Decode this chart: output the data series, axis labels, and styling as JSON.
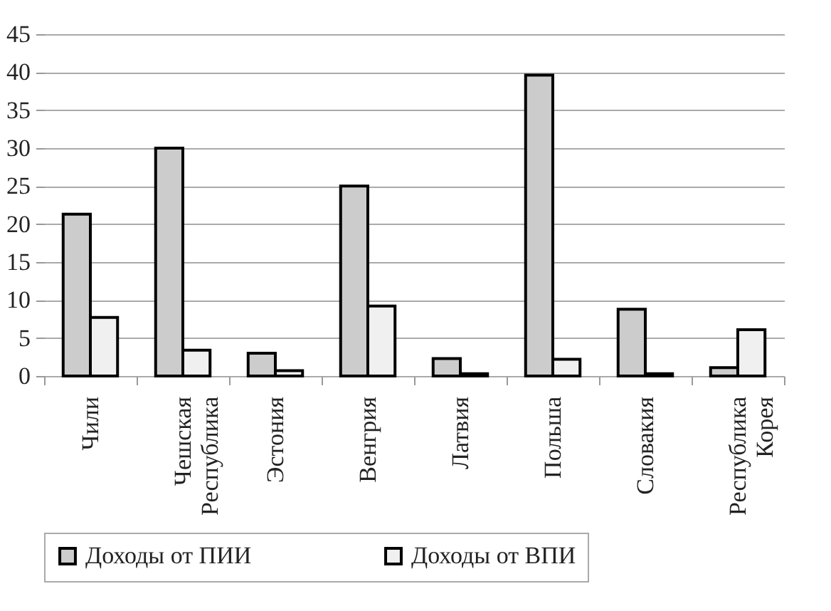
{
  "chart_data": {
    "type": "bar",
    "categories": [
      "Чили",
      "Чешская Республика",
      "Эстония",
      "Венгрия",
      "Латвия",
      "Польша",
      "Словакия",
      "Республика Корея"
    ],
    "series": [
      {
        "name": "Доходы от ПИИ",
        "color": "#cccccc",
        "values": [
          21.3,
          30,
          3,
          25,
          2.3,
          39.6,
          8.8,
          1.1
        ]
      },
      {
        "name": "Доходы от ВПИ",
        "color": "#f0f0f0",
        "values": [
          7.7,
          3.4,
          0.7,
          9.2,
          0.3,
          2.2,
          0.3,
          6.1
        ]
      }
    ],
    "ylim": [
      0,
      45
    ],
    "yticks": [
      0,
      5,
      10,
      15,
      20,
      25,
      30,
      35,
      40,
      45
    ],
    "grid": "y",
    "legend": "bottom"
  }
}
